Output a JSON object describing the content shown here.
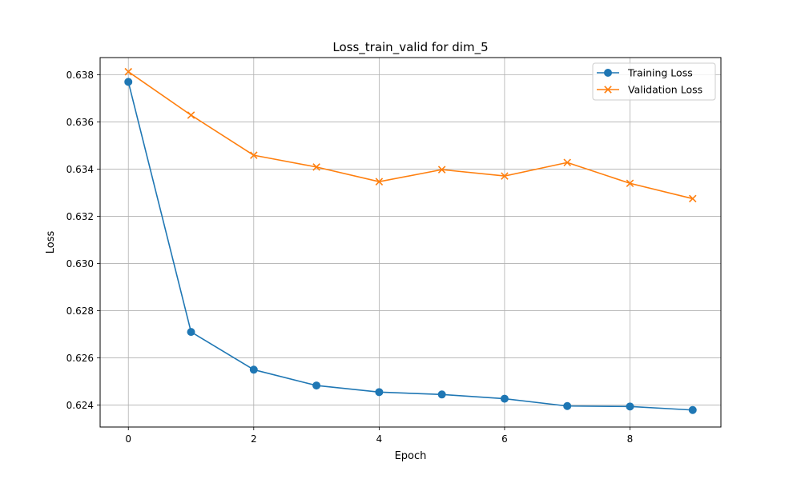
{
  "chart_data": {
    "type": "line",
    "title": "Loss_train_valid for dim_5",
    "xlabel": "Epoch",
    "ylabel": "Loss",
    "x": [
      0,
      1,
      2,
      3,
      4,
      5,
      6,
      7,
      8,
      9
    ],
    "xlim": [
      -0.45,
      9.45
    ],
    "ylim": [
      0.62307,
      0.63873
    ],
    "xticks": [
      0,
      2,
      4,
      6,
      8
    ],
    "xtick_labels": [
      "0",
      "2",
      "4",
      "6",
      "8"
    ],
    "yticks": [
      0.624,
      0.626,
      0.628,
      0.63,
      0.632,
      0.634,
      0.636,
      0.638
    ],
    "ytick_labels": [
      "0.624",
      "0.626",
      "0.628",
      "0.630",
      "0.632",
      "0.634",
      "0.636",
      "0.638"
    ],
    "grid": true,
    "legend_position": "top-right",
    "series": [
      {
        "name": "Training Loss",
        "color": "#1f77b4",
        "marker": "circle",
        "values": [
          0.6377,
          0.6271,
          0.6255,
          0.62483,
          0.62455,
          0.62445,
          0.62427,
          0.62396,
          0.62394,
          0.62379
        ]
      },
      {
        "name": "Validation Loss",
        "color": "#ff7f0e",
        "marker": "x",
        "values": [
          0.63813,
          0.63629,
          0.63459,
          0.63409,
          0.63347,
          0.63398,
          0.63371,
          0.63428,
          0.6334,
          0.63275
        ]
      }
    ]
  }
}
